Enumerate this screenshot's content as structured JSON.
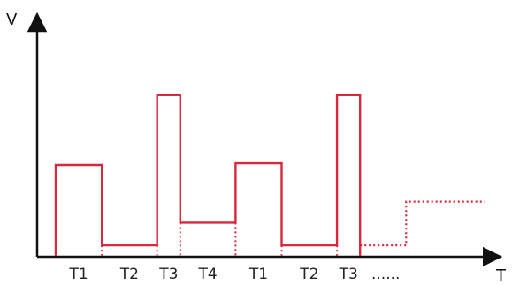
{
  "chart_data": {
    "type": "line",
    "title": "",
    "xlabel": "T",
    "ylabel": "V",
    "categories": [
      "T1",
      "T2",
      "T3",
      "T4",
      "T1",
      "T2",
      "T3"
    ],
    "continuation_text": "......",
    "grid": false,
    "colors": {
      "signal": "#d9283d",
      "axis": "#111111",
      "text": "#222222"
    },
    "series": [
      {
        "style": "solid",
        "steps": [
          {
            "x0": 0.0,
            "x1": 1.0,
            "y": 0.52
          },
          {
            "x0": 1.0,
            "x1": 2.2,
            "y": 0.06
          },
          {
            "x0": 2.2,
            "x1": 2.7,
            "y": 0.92
          },
          {
            "x0": 2.7,
            "x1": 3.9,
            "y": 0.19
          },
          {
            "x0": 3.9,
            "x1": 4.9,
            "y": 0.53
          },
          {
            "x0": 4.9,
            "x1": 6.1,
            "y": 0.06
          },
          {
            "x0": 6.1,
            "x1": 6.6,
            "y": 0.92
          }
        ]
      },
      {
        "style": "dotted",
        "steps": [
          {
            "x0": 6.6,
            "x1": 7.6,
            "y": 0.06
          },
          {
            "x0": 7.6,
            "x1": 9.3,
            "y": 0.31
          }
        ]
      }
    ],
    "xlim": [
      0,
      9.3
    ],
    "ylim": [
      0,
      1
    ]
  }
}
